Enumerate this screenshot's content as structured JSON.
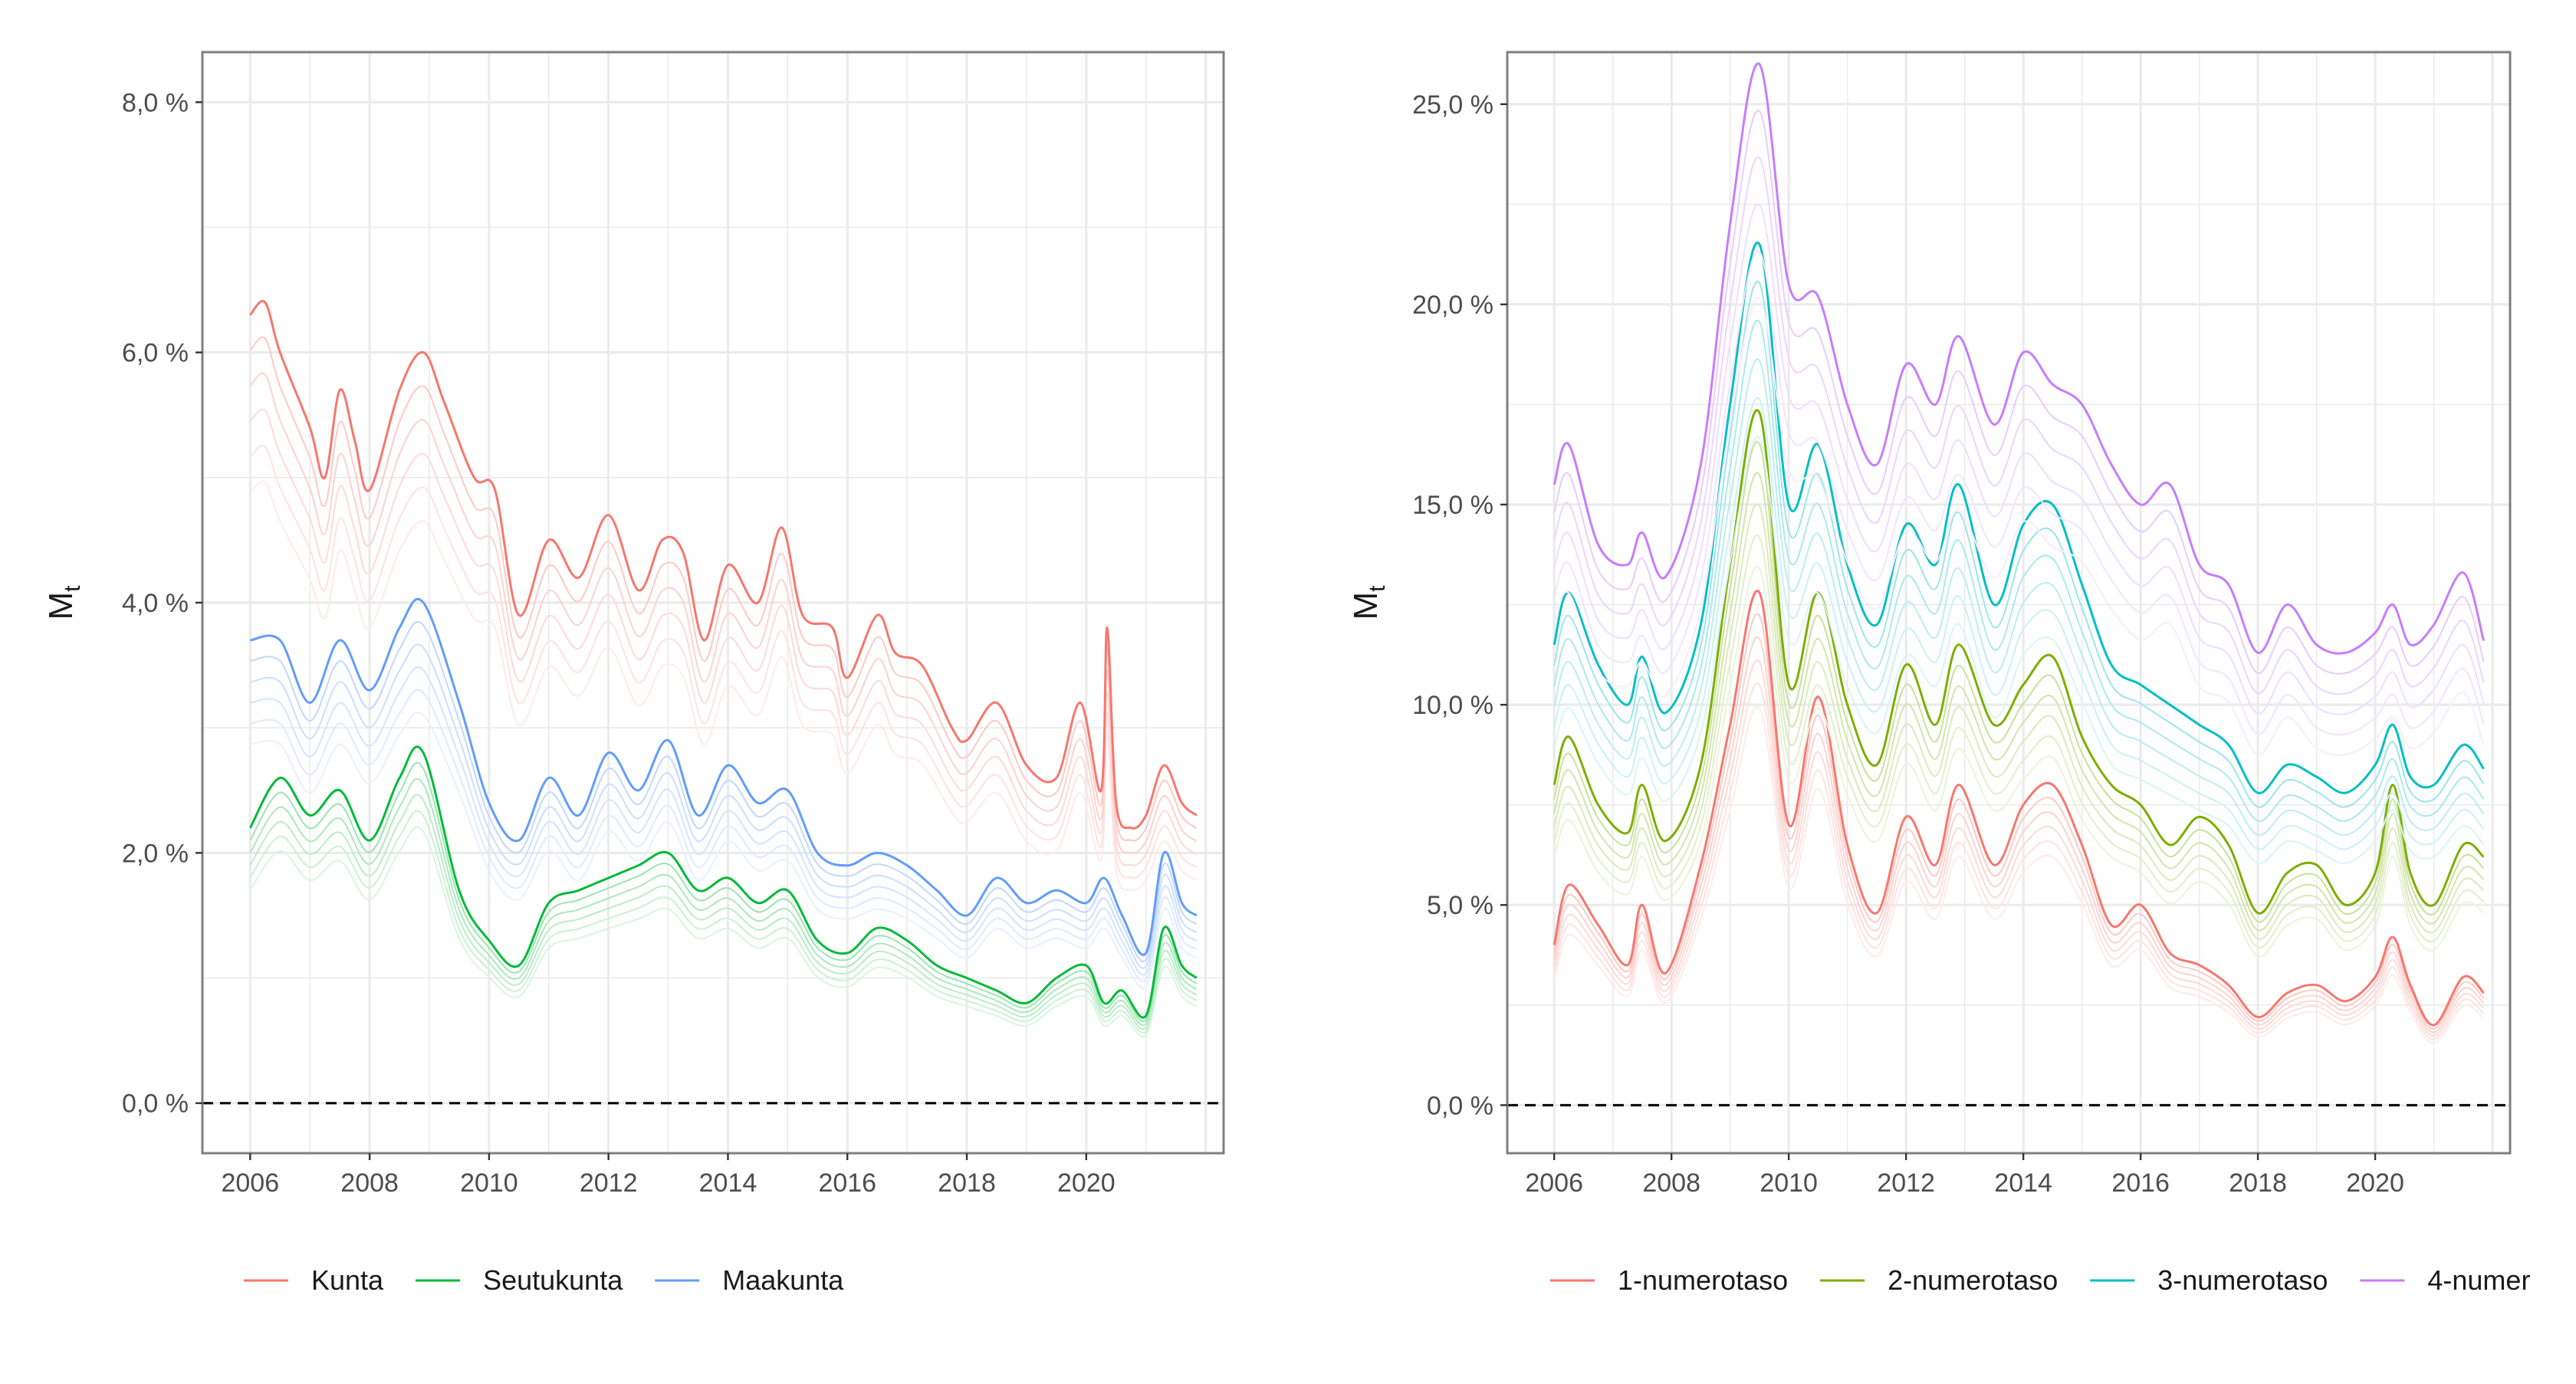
{
  "chart_data": [
    {
      "type": "line",
      "title": "",
      "ylabel": "M",
      "ylabel_sub": "t",
      "xlabel": "",
      "xlim": [
        2005.2,
        2022.3
      ],
      "ylim": [
        -0.4,
        8.4
      ],
      "x_ticks": [
        2006,
        2008,
        2010,
        2012,
        2014,
        2016,
        2018,
        2020
      ],
      "x_tick_labels": [
        "2006",
        "2008",
        "2010",
        "2012",
        "2014",
        "2016",
        "2018",
        "2020"
      ],
      "y_ticks": [
        0,
        2,
        4,
        6,
        8
      ],
      "y_tick_labels": [
        "0,0 %",
        "2,0 %",
        "4,0 %",
        "6,0 %",
        "8,0 %"
      ],
      "grid": true,
      "reference_line": 0,
      "legend_position": "bottom",
      "legend": [
        "Kunta",
        "Seutukunta",
        "Maakunta"
      ],
      "series": [
        {
          "name": "Kunta",
          "color": "#F8766D",
          "x": [
            2006.0,
            2006.25,
            2006.5,
            2007.0,
            2007.25,
            2007.5,
            2007.75,
            2008.0,
            2008.5,
            2008.9,
            2009.25,
            2009.75,
            2010.1,
            2010.5,
            2011.0,
            2011.5,
            2012.0,
            2012.5,
            2012.9,
            2013.25,
            2013.6,
            2014.0,
            2014.5,
            2014.9,
            2015.25,
            2015.75,
            2016.0,
            2016.5,
            2016.8,
            2017.25,
            2017.75,
            2018.0,
            2018.5,
            2019.0,
            2019.5,
            2019.9,
            2020.25,
            2020.35,
            2020.5,
            2020.75,
            2021.0,
            2021.3,
            2021.6,
            2021.85
          ],
          "y": [
            6.3,
            6.4,
            6.0,
            5.4,
            5.0,
            5.7,
            5.3,
            4.9,
            5.7,
            6.0,
            5.6,
            5.0,
            4.9,
            3.9,
            4.5,
            4.2,
            4.7,
            4.1,
            4.5,
            4.4,
            3.7,
            4.3,
            4.0,
            4.6,
            3.9,
            3.8,
            3.4,
            3.9,
            3.6,
            3.5,
            3.0,
            2.9,
            3.2,
            2.7,
            2.6,
            3.2,
            2.5,
            3.8,
            2.4,
            2.2,
            2.3,
            2.7,
            2.4,
            2.3
          ]
        },
        {
          "name": "Seutukunta",
          "color": "#00BA38",
          "x": [
            2006.0,
            2006.5,
            2007.0,
            2007.5,
            2008.0,
            2008.5,
            2008.9,
            2009.5,
            2010.0,
            2010.5,
            2011.0,
            2011.5,
            2012.0,
            2012.5,
            2013.0,
            2013.5,
            2014.0,
            2014.5,
            2015.0,
            2015.5,
            2016.0,
            2016.5,
            2017.0,
            2017.5,
            2018.0,
            2018.5,
            2019.0,
            2019.5,
            2020.0,
            2020.3,
            2020.6,
            2021.0,
            2021.3,
            2021.6,
            2021.85
          ],
          "y": [
            2.2,
            2.6,
            2.3,
            2.5,
            2.1,
            2.6,
            2.8,
            1.7,
            1.3,
            1.1,
            1.6,
            1.7,
            1.8,
            1.9,
            2.0,
            1.7,
            1.8,
            1.6,
            1.7,
            1.3,
            1.2,
            1.4,
            1.3,
            1.1,
            1.0,
            0.9,
            0.8,
            1.0,
            1.1,
            0.8,
            0.9,
            0.7,
            1.4,
            1.1,
            1.0
          ]
        },
        {
          "name": "Maakunta",
          "color": "#619CFF",
          "x": [
            2006.0,
            2006.5,
            2007.0,
            2007.5,
            2008.0,
            2008.5,
            2008.9,
            2009.5,
            2010.0,
            2010.5,
            2011.0,
            2011.5,
            2012.0,
            2012.5,
            2013.0,
            2013.5,
            2014.0,
            2014.5,
            2015.0,
            2015.5,
            2016.0,
            2016.5,
            2017.0,
            2017.5,
            2018.0,
            2018.5,
            2019.0,
            2019.5,
            2020.0,
            2020.3,
            2020.6,
            2021.0,
            2021.3,
            2021.6,
            2021.85
          ],
          "y": [
            3.7,
            3.7,
            3.2,
            3.7,
            3.3,
            3.8,
            4.0,
            3.2,
            2.4,
            2.1,
            2.6,
            2.3,
            2.8,
            2.5,
            2.9,
            2.3,
            2.7,
            2.4,
            2.5,
            2.0,
            1.9,
            2.0,
            1.9,
            1.7,
            1.5,
            1.8,
            1.6,
            1.7,
            1.6,
            1.8,
            1.5,
            1.2,
            2.0,
            1.6,
            1.5
          ]
        }
      ]
    },
    {
      "type": "line",
      "title": "",
      "ylabel": "M",
      "ylabel_sub": "t",
      "xlabel": "",
      "xlim": [
        2005.2,
        2022.3
      ],
      "ylim": [
        -1.2,
        26.3
      ],
      "x_ticks": [
        2006,
        2008,
        2010,
        2012,
        2014,
        2016,
        2018,
        2020
      ],
      "x_tick_labels": [
        "2006",
        "2008",
        "2010",
        "2012",
        "2014",
        "2016",
        "2018",
        "2020"
      ],
      "y_ticks": [
        0,
        5,
        10,
        15,
        20,
        25
      ],
      "y_tick_labels": [
        "0,0 %",
        "5,0 %",
        "10,0 %",
        "15,0 %",
        "20,0 %",
        "25,0 %"
      ],
      "grid": true,
      "reference_line": 0,
      "legend_position": "bottom",
      "legend": [
        "1-numerotaso",
        "2-numerotaso",
        "3-numerotaso",
        "4-numer"
      ],
      "series": [
        {
          "name": "1-numerotaso",
          "color": "#F8766D",
          "x": [
            2006.0,
            2006.25,
            2006.75,
            2007.25,
            2007.5,
            2007.9,
            2008.5,
            2009.0,
            2009.5,
            2010.0,
            2010.5,
            2011.0,
            2011.5,
            2012.0,
            2012.5,
            2012.9,
            2013.5,
            2014.0,
            2014.5,
            2015.0,
            2015.5,
            2016.0,
            2016.5,
            2017.0,
            2017.5,
            2018.0,
            2018.5,
            2019.0,
            2019.5,
            2020.0,
            2020.3,
            2020.6,
            2021.0,
            2021.5,
            2021.85
          ],
          "y": [
            4.0,
            5.5,
            4.5,
            3.5,
            5.0,
            3.3,
            6.0,
            9.5,
            12.8,
            7.0,
            10.2,
            6.5,
            4.8,
            7.2,
            6.0,
            8.0,
            6.0,
            7.5,
            8.0,
            6.5,
            4.5,
            5.0,
            3.8,
            3.5,
            3.0,
            2.2,
            2.8,
            3.0,
            2.6,
            3.2,
            4.2,
            3.0,
            2.0,
            3.2,
            2.8
          ]
        },
        {
          "name": "2-numerotaso",
          "color": "#7CAE00",
          "x": [
            2006.0,
            2006.25,
            2006.75,
            2007.25,
            2007.5,
            2007.9,
            2008.5,
            2009.0,
            2009.5,
            2010.0,
            2010.5,
            2011.0,
            2011.5,
            2012.0,
            2012.5,
            2012.9,
            2013.5,
            2014.0,
            2014.5,
            2015.0,
            2015.5,
            2016.0,
            2016.5,
            2017.0,
            2017.5,
            2018.0,
            2018.5,
            2019.0,
            2019.5,
            2020.0,
            2020.3,
            2020.6,
            2021.0,
            2021.5,
            2021.85
          ],
          "y": [
            8.0,
            9.2,
            7.5,
            6.8,
            8.0,
            6.6,
            8.5,
            13.5,
            17.3,
            10.5,
            12.8,
            10.0,
            8.5,
            11.0,
            9.5,
            11.5,
            9.5,
            10.5,
            11.2,
            9.2,
            8.0,
            7.5,
            6.5,
            7.2,
            6.5,
            4.8,
            5.8,
            6.0,
            5.0,
            5.8,
            8.0,
            5.8,
            5.0,
            6.5,
            6.2
          ]
        },
        {
          "name": "3-numerotaso",
          "color": "#00BFC4",
          "x": [
            2006.0,
            2006.25,
            2006.75,
            2007.25,
            2007.5,
            2007.9,
            2008.5,
            2009.0,
            2009.5,
            2010.0,
            2010.5,
            2011.0,
            2011.5,
            2012.0,
            2012.5,
            2012.9,
            2013.5,
            2014.0,
            2014.5,
            2015.0,
            2015.5,
            2016.0,
            2016.5,
            2017.0,
            2017.5,
            2018.0,
            2018.5,
            2019.0,
            2019.5,
            2020.0,
            2020.3,
            2020.6,
            2021.0,
            2021.5,
            2021.85
          ],
          "y": [
            11.5,
            12.8,
            11.0,
            10.0,
            11.2,
            9.8,
            12.0,
            17.5,
            21.5,
            15.0,
            16.5,
            13.5,
            12.0,
            14.5,
            13.5,
            15.5,
            12.5,
            14.5,
            15.0,
            13.0,
            11.0,
            10.5,
            10.0,
            9.5,
            9.0,
            7.8,
            8.5,
            8.2,
            7.8,
            8.5,
            9.5,
            8.2,
            8.0,
            9.0,
            8.4
          ]
        },
        {
          "name": "4-numer",
          "color": "#C77CFF",
          "x": [
            2006.0,
            2006.25,
            2006.75,
            2007.25,
            2007.5,
            2007.9,
            2008.5,
            2009.0,
            2009.5,
            2010.0,
            2010.5,
            2011.0,
            2011.5,
            2012.0,
            2012.5,
            2012.9,
            2013.5,
            2014.0,
            2014.5,
            2015.0,
            2015.5,
            2016.0,
            2016.5,
            2017.0,
            2017.5,
            2018.0,
            2018.5,
            2019.0,
            2019.5,
            2020.0,
            2020.3,
            2020.6,
            2021.0,
            2021.5,
            2021.85
          ],
          "y": [
            15.5,
            16.5,
            14.0,
            13.5,
            14.3,
            13.2,
            16.0,
            22.0,
            26.0,
            20.5,
            20.2,
            17.5,
            16.0,
            18.5,
            17.5,
            19.2,
            17.0,
            18.8,
            18.0,
            17.5,
            16.0,
            15.0,
            15.5,
            13.5,
            13.0,
            11.3,
            12.5,
            11.5,
            11.3,
            11.8,
            12.5,
            11.5,
            12.0,
            13.3,
            11.6
          ]
        }
      ]
    }
  ]
}
